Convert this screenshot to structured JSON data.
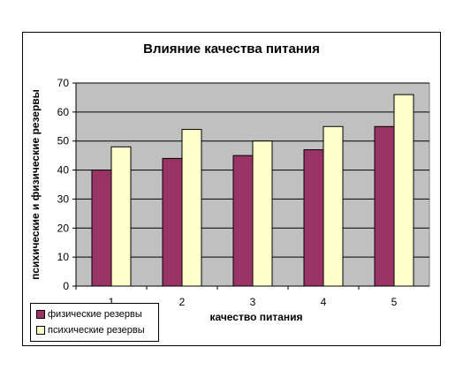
{
  "chart_data": {
    "type": "bar",
    "title": "Влияние качества питания",
    "xlabel": "качество питания",
    "ylabel": "психические и физические резервы",
    "categories": [
      "1",
      "2",
      "3",
      "4",
      "5"
    ],
    "ylim": [
      0,
      70
    ],
    "yticks": [
      "0",
      "10",
      "20",
      "30",
      "40",
      "50",
      "60",
      "70"
    ],
    "grid": true,
    "legend_position": "bottom-left",
    "series": [
      {
        "name": "физические резервы",
        "values": [
          40,
          44,
          45,
          47,
          55
        ],
        "color": "#993366"
      },
      {
        "name": "психические резервы",
        "values": [
          48,
          54,
          50,
          55,
          66
        ],
        "color": "#ffffcc"
      }
    ],
    "plot_background": "#c0c0c0"
  }
}
